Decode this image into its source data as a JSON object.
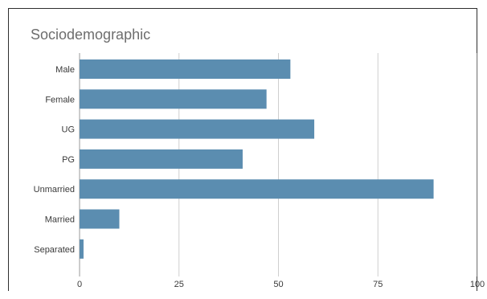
{
  "chart_data": {
    "type": "bar",
    "orientation": "horizontal",
    "title": "Sociodemographic",
    "categories": [
      "Male",
      "Female",
      "UG",
      "PG",
      "Unmarried",
      "Married",
      "Separated"
    ],
    "values": [
      53,
      47,
      59,
      41,
      89,
      10,
      1
    ],
    "xlim": [
      0,
      100
    ],
    "xticks": [
      "0",
      "25",
      "50",
      "75",
      "100"
    ],
    "xlabel": "",
    "ylabel": "",
    "grid": "vertical",
    "legend": "none",
    "colors": {
      "bar": "#5b8db0",
      "grid": "#cfcfcf",
      "title": "#6d6d6d"
    }
  }
}
